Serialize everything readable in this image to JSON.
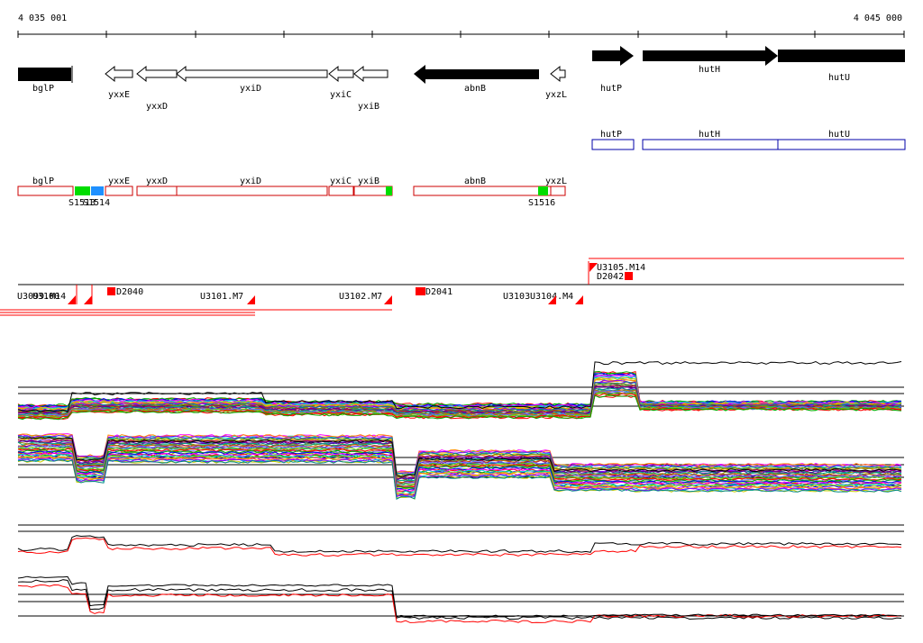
{
  "coords": {
    "start": "4 035 001",
    "end": "4 045 000"
  },
  "colors": {
    "black": "#000000",
    "red": "#ff0000",
    "box_red": "#cc0000",
    "blue": "#0000aa",
    "green": "#00dd00",
    "cyan": "#1e90ff"
  },
  "genes_black": [
    {
      "label": "bglP",
      "strand": "none"
    },
    {
      "label": "abnB",
      "strand": "minus"
    },
    {
      "label": "hutP",
      "strand": "plus"
    },
    {
      "label": "hutH",
      "strand": "plus"
    },
    {
      "label": "hutU",
      "strand": "none"
    }
  ],
  "genes_white": [
    {
      "label": "yxxE"
    },
    {
      "label": "yxxD"
    },
    {
      "label": "yxiD"
    },
    {
      "label": "yxiC"
    },
    {
      "label": "yxiB"
    },
    {
      "label": "yxzL"
    }
  ],
  "operon_blue": [
    {
      "label": "hutP"
    },
    {
      "label": "hutH"
    },
    {
      "label": "hutU"
    }
  ],
  "red_boxes": [
    {
      "label": "bglP"
    },
    {
      "label": "yxxE"
    },
    {
      "label": "yxxD"
    },
    {
      "label": "yxiD"
    },
    {
      "label": "yxiC"
    },
    {
      "label": "yxiB"
    },
    {
      "label": "abnB"
    },
    {
      "label": "yxzL"
    }
  ],
  "features": {
    "s1514": "S1514",
    "s1513": "S1513",
    "s1516": "S1516"
  },
  "transcripts": [
    {
      "label": "U3099.M14"
    },
    {
      "label": "U3100"
    },
    {
      "label": "U3101.M7"
    },
    {
      "label": "U3102.M7"
    },
    {
      "label": "U3103"
    },
    {
      "label": "U3104.M4"
    },
    {
      "label": "U3105.M14"
    }
  ],
  "markers": [
    {
      "label": "D2040"
    },
    {
      "label": "D2041"
    },
    {
      "label": "D2042"
    }
  ]
}
